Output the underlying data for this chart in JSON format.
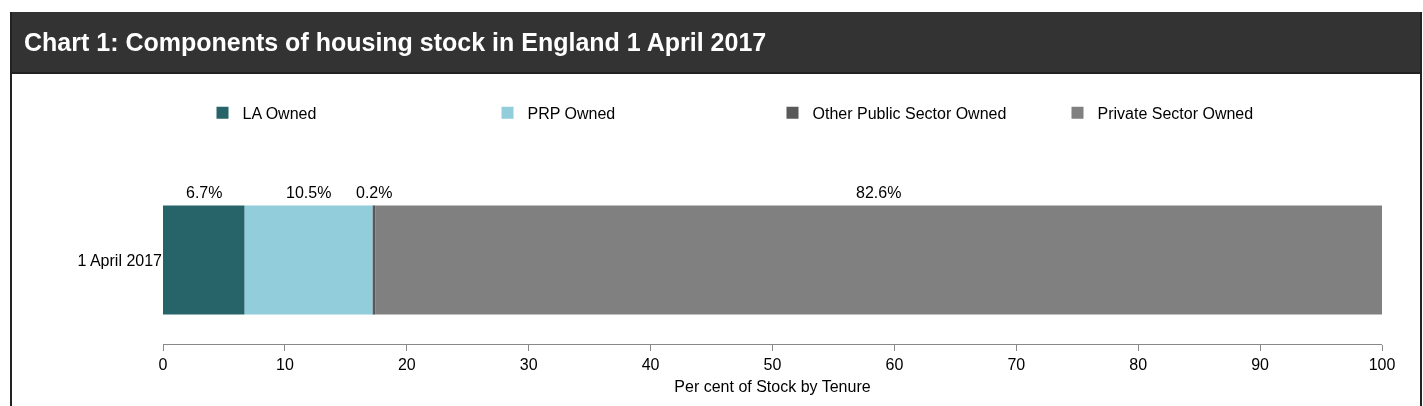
{
  "chart_data": {
    "type": "bar",
    "title": "Chart 1: Components of housing stock in England 1 April 2017",
    "orientation": "horizontal",
    "stacked": true,
    "categories": [
      "1 April 2017"
    ],
    "series": [
      {
        "name": "LA Owned",
        "color": "#266469",
        "values": [
          6.7
        ],
        "value_labels": [
          "6.7%"
        ]
      },
      {
        "name": "PRP Owned",
        "color": "#92cddc",
        "values": [
          10.5
        ],
        "value_labels": [
          "10.5%"
        ]
      },
      {
        "name": "Other Public Sector Owned",
        "color": "#595959",
        "values": [
          0.2
        ],
        "value_labels": [
          "0.2%"
        ]
      },
      {
        "name": "Private Sector Owned",
        "color": "#808080",
        "values": [
          82.6
        ],
        "value_labels": [
          "82.6%"
        ]
      }
    ],
    "xlabel": "Per cent of Stock by Tenure",
    "xlim": [
      0,
      100
    ],
    "xticks": [
      0,
      10,
      20,
      30,
      40,
      50,
      60,
      70,
      80,
      90,
      100
    ],
    "grid": false,
    "legend": "top"
  }
}
